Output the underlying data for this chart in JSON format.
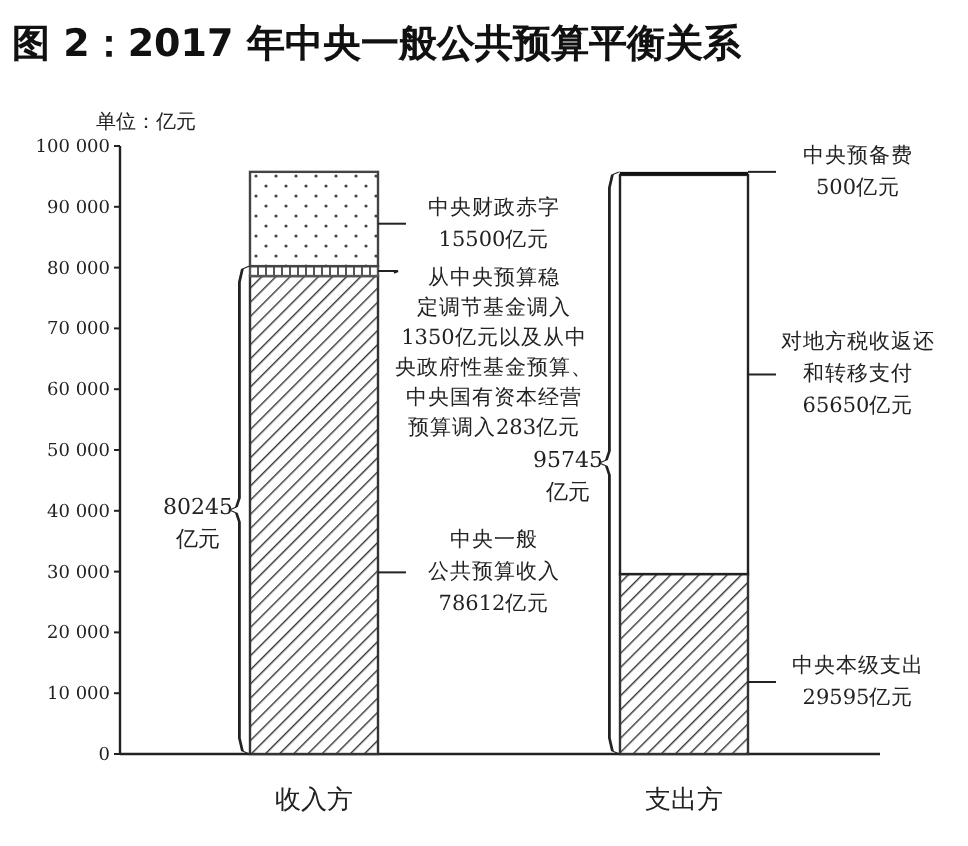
{
  "chart_data": {
    "type": "bar",
    "stacked": true,
    "title": "图 2：2017 年中央一般公共预算平衡关系",
    "ylabel": "单位：亿元",
    "categories": [
      "收入方",
      "支出方"
    ],
    "series": [
      {
        "color": "#333333",
        "values": [
          78612,
          29595
        ]
      },
      {
        "color": "#555555",
        "values": [
          1633,
          null
        ]
      },
      {
        "color": "#444444",
        "values": [
          15500,
          null
        ]
      },
      {
        "color": "#222222",
        "values": [
          null,
          65650
        ]
      },
      {
        "color": "#111111",
        "values": [
          null,
          500
        ]
      }
    ],
    "ylim": [
      0,
      100000
    ],
    "yticks": [
      0,
      {
        "value": 10000,
        "label": "10 000"
      },
      {
        "value": 20000,
        "label": "20 000"
      },
      {
        "value": 30000,
        "label": "30 000"
      },
      {
        "value": 40000,
        "label": "40 000"
      },
      {
        "value": 50000,
        "label": "50 000"
      },
      {
        "value": 60000,
        "label": "60 000"
      },
      {
        "value": 70000,
        "label": "70 000"
      },
      {
        "value": 80000,
        "label": "80 000"
      },
      {
        "value": 90000,
        "label": "90 000"
      },
      {
        "value": 100000,
        "label": "100 000"
      }
    ],
    "grid": false,
    "annotations": [
      "80245亿元",
      "95745亿元",
      "中央财政赤字15500亿元",
      "从中央预算稳定调节基金调入1350亿元以及从中央政府性基金预算、中央国有资本经营预算调入283亿元",
      "中央一般公共预算收入78612亿元",
      "中央预备费500亿元",
      "对地方税收返还和转移支付65650亿元",
      "中央本级支出29595亿元"
    ]
  }
}
